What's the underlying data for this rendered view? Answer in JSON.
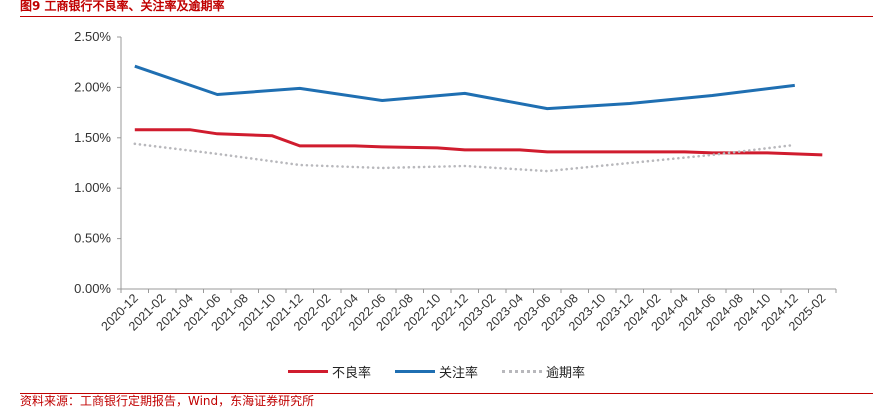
{
  "title": "图9 工商银行不良率、关注率及逾期率",
  "source": "资料来源：工商银行定期报告，Wind，东海证券研究所",
  "colors": {
    "accent": "#c00000",
    "npl": "#d01c2e",
    "attention": "#1f6fb2",
    "overdue": "#b8b8bc"
  },
  "chart_data": {
    "type": "line",
    "categories": [
      "2020-12",
      "2021-02",
      "2021-04",
      "2021-06",
      "2021-08",
      "2021-10",
      "2021-12",
      "2022-02",
      "2022-04",
      "2022-06",
      "2022-08",
      "2022-10",
      "2022-12",
      "2023-02",
      "2023-04",
      "2023-06",
      "2023-08",
      "2023-10",
      "2023-12",
      "2024-02",
      "2024-04",
      "2024-06",
      "2024-08",
      "2024-10",
      "2024-12",
      "2025-02"
    ],
    "y_ticks": [
      "0.00%",
      "0.50%",
      "1.00%",
      "1.50%",
      "2.00%",
      "2.50%"
    ],
    "ylim": [
      0,
      2.5
    ],
    "grid": false,
    "legend_position": "bottom",
    "series": [
      {
        "name": "不良率",
        "style": "solid",
        "color": "#d01c2e",
        "points": [
          [
            "2020-12",
            1.58
          ],
          [
            "2021-04",
            1.58
          ],
          [
            "2021-06",
            1.54
          ],
          [
            "2021-10",
            1.52
          ],
          [
            "2021-12",
            1.42
          ],
          [
            "2022-04",
            1.42
          ],
          [
            "2022-06",
            1.41
          ],
          [
            "2022-10",
            1.4
          ],
          [
            "2022-12",
            1.38
          ],
          [
            "2023-04",
            1.38
          ],
          [
            "2023-06",
            1.36
          ],
          [
            "2023-12",
            1.36
          ],
          [
            "2024-04",
            1.36
          ],
          [
            "2024-06",
            1.35
          ],
          [
            "2024-10",
            1.35
          ],
          [
            "2024-12",
            1.34
          ],
          [
            "2025-02",
            1.33
          ]
        ]
      },
      {
        "name": "关注率",
        "style": "solid",
        "color": "#1f6fb2",
        "points": [
          [
            "2020-12",
            2.21
          ],
          [
            "2021-06",
            1.93
          ],
          [
            "2021-12",
            1.99
          ],
          [
            "2022-06",
            1.87
          ],
          [
            "2022-12",
            1.94
          ],
          [
            "2023-06",
            1.79
          ],
          [
            "2023-12",
            1.84
          ],
          [
            "2024-06",
            1.92
          ],
          [
            "2024-12",
            2.02
          ]
        ]
      },
      {
        "name": "逾期率",
        "style": "dotted",
        "color": "#b8b8bc",
        "points": [
          [
            "2020-12",
            1.44
          ],
          [
            "2021-06",
            1.34
          ],
          [
            "2021-12",
            1.23
          ],
          [
            "2022-06",
            1.2
          ],
          [
            "2022-12",
            1.22
          ],
          [
            "2023-06",
            1.17
          ],
          [
            "2023-12",
            1.25
          ],
          [
            "2024-06",
            1.33
          ],
          [
            "2024-12",
            1.43
          ]
        ]
      }
    ]
  }
}
